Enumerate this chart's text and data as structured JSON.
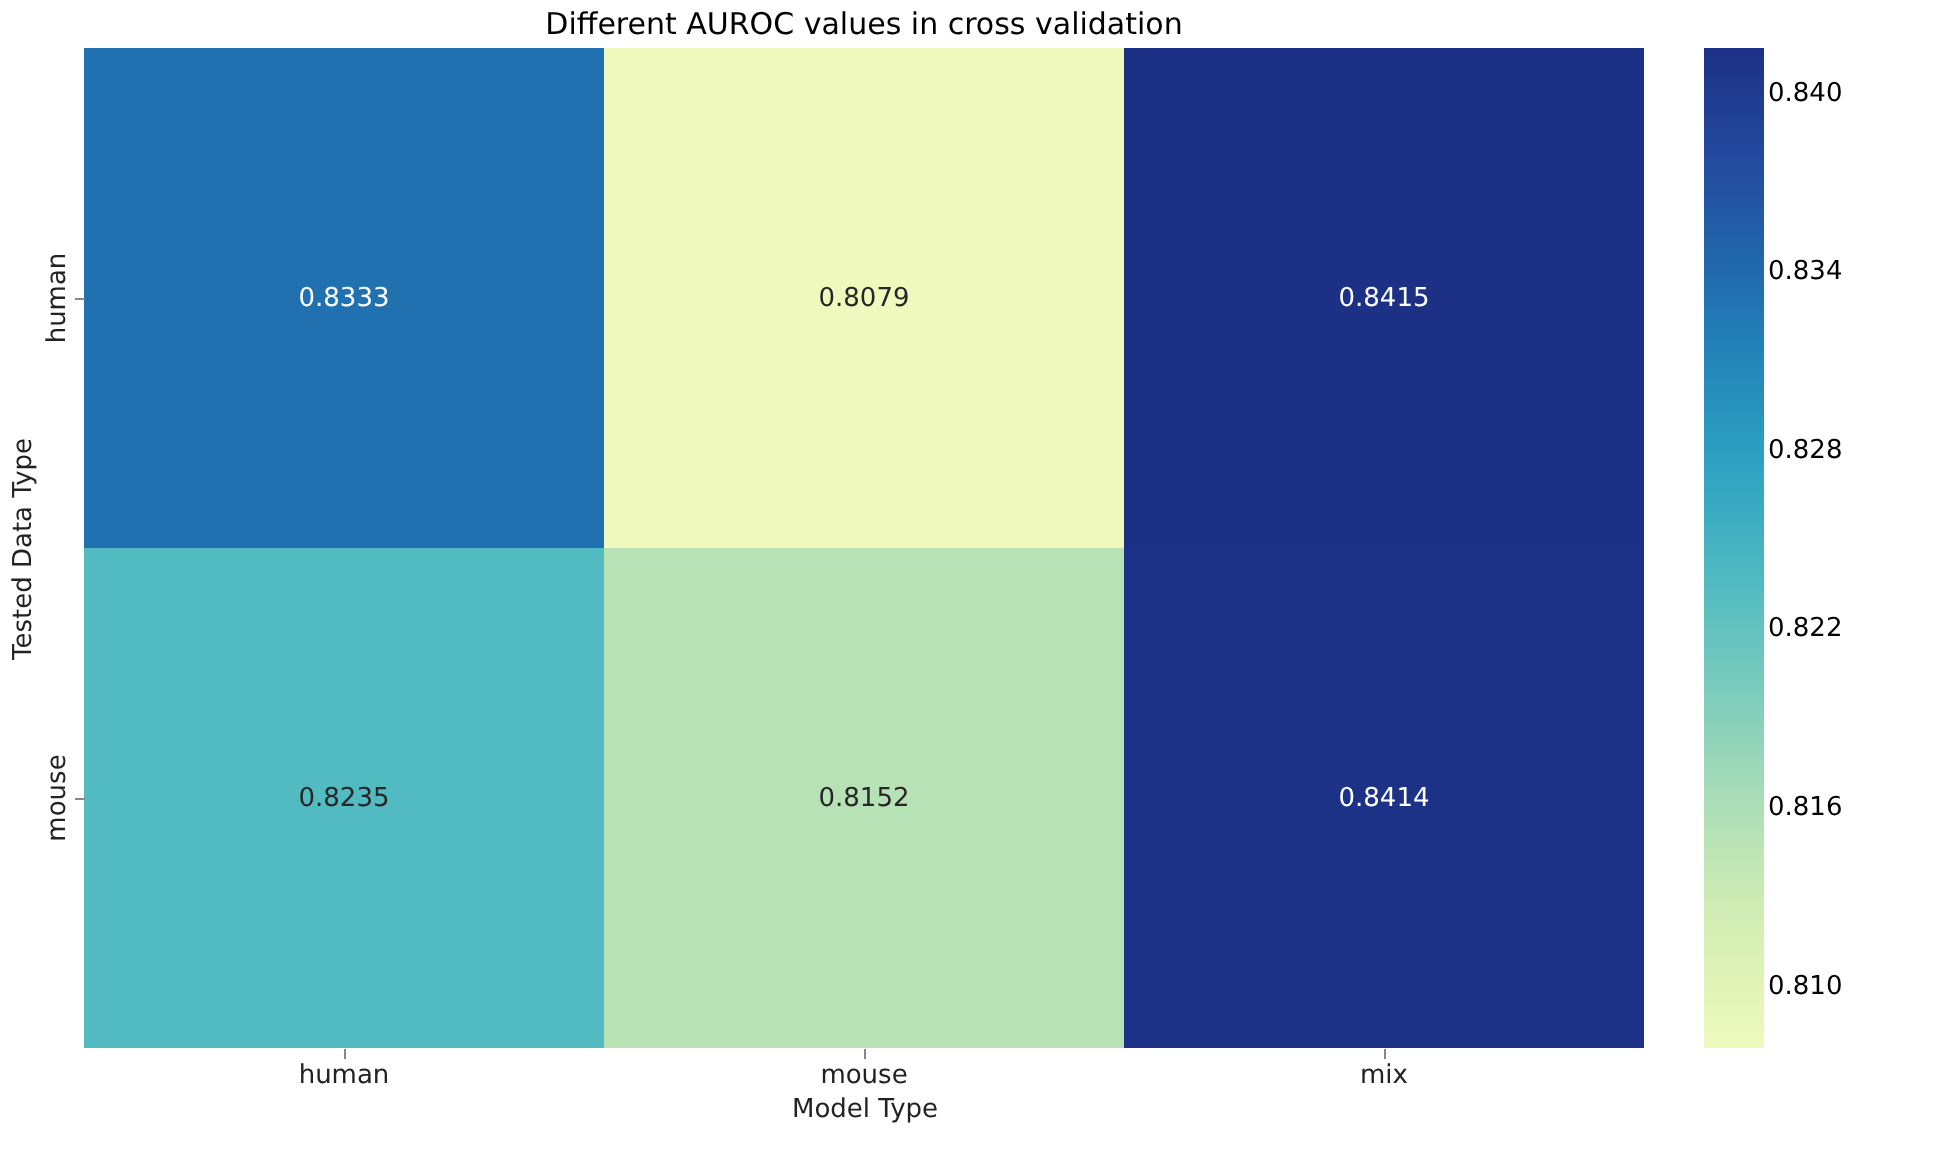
{
  "chart_data": {
    "type": "heatmap",
    "title": "Different AUROC values in cross validation",
    "xlabel": "Model Type",
    "ylabel": "Tested Data Type",
    "categories": [
      "human",
      "mouse",
      "mix"
    ],
    "y_categories": [
      "human",
      "mouse"
    ],
    "cells": [
      [
        0.8333,
        0.8079,
        0.8415
      ],
      [
        0.8235,
        0.8152,
        0.8414
      ]
    ],
    "data_labels": true,
    "clim": [
      0.8079,
      0.8415
    ],
    "cticks": [
      {
        "value": 0.81,
        "label": "0.810"
      },
      {
        "value": 0.816,
        "label": "0.816"
      },
      {
        "value": 0.822,
        "label": "0.822"
      },
      {
        "value": 0.828,
        "label": "0.828"
      },
      {
        "value": 0.834,
        "label": "0.834"
      },
      {
        "value": 0.84,
        "label": "0.840"
      }
    ]
  }
}
